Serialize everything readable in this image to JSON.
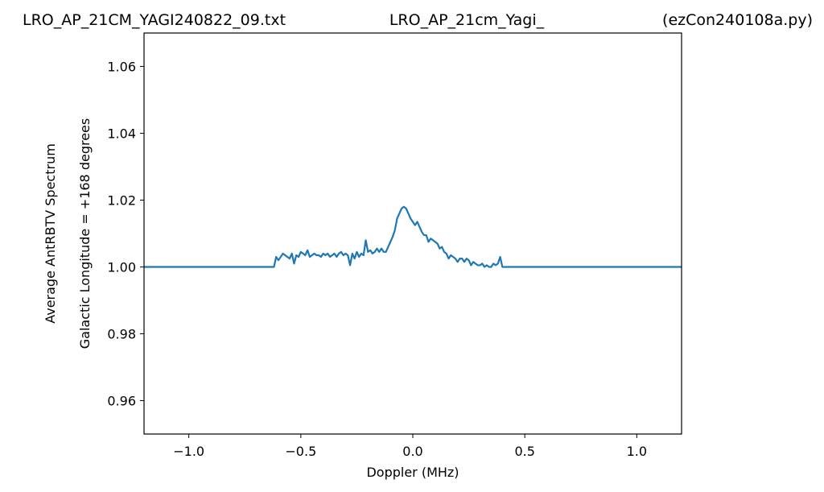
{
  "chart_data": {
    "type": "line",
    "title_left": "LRO_AP_21CM_YAGI240822_09.txt",
    "title_center": "LRO_AP_21cm_Yagi_",
    "title_right": "(ezCon240108a.py)",
    "xlabel": "Doppler (MHz)",
    "ylabel_line1": "Average AntRBTV Spectrum",
    "ylabel_line2": "Galactic Longitude = +168 degrees",
    "xlim": [
      -1.2,
      1.2
    ],
    "ylim": [
      0.95,
      1.07
    ],
    "xticks": [
      -1.0,
      -0.5,
      0.0,
      0.5,
      1.0
    ],
    "xtick_labels": [
      "−1.0",
      "−0.5",
      "0.0",
      "0.5",
      "1.0"
    ],
    "yticks": [
      0.96,
      0.98,
      1.0,
      1.02,
      1.04,
      1.06
    ],
    "ytick_labels": [
      "0.96",
      "0.98",
      "1.00",
      "1.02",
      "1.04",
      "1.06"
    ],
    "grid": false,
    "line_color": "#1f77b4",
    "series": [
      {
        "x": [
          -1.2,
          -0.62,
          -0.61,
          -0.6,
          -0.59,
          -0.58,
          -0.57,
          -0.56,
          -0.55,
          -0.54,
          -0.53,
          -0.52,
          -0.51,
          -0.5,
          -0.49,
          -0.48,
          -0.47,
          -0.46,
          -0.45,
          -0.44,
          -0.43,
          -0.42,
          -0.41,
          -0.4,
          -0.39,
          -0.38,
          -0.37,
          -0.36,
          -0.35,
          -0.34,
          -0.33,
          -0.32,
          -0.31,
          -0.3,
          -0.29,
          -0.28,
          -0.27,
          -0.26,
          -0.25,
          -0.24,
          -0.23,
          -0.22,
          -0.21,
          -0.2,
          -0.19,
          -0.18,
          -0.17,
          -0.16,
          -0.15,
          -0.14,
          -0.13,
          -0.12,
          -0.11,
          -0.1,
          -0.09,
          -0.08,
          -0.07,
          -0.06,
          -0.05,
          -0.04,
          -0.03,
          -0.02,
          -0.01,
          0.0,
          0.01,
          0.02,
          0.03,
          0.04,
          0.05,
          0.06,
          0.07,
          0.08,
          0.09,
          0.1,
          0.11,
          0.12,
          0.13,
          0.14,
          0.15,
          0.16,
          0.17,
          0.18,
          0.19,
          0.2,
          0.21,
          0.22,
          0.23,
          0.24,
          0.25,
          0.26,
          0.27,
          0.28,
          0.29,
          0.3,
          0.31,
          0.32,
          0.33,
          0.34,
          0.35,
          0.36,
          0.37,
          0.38,
          0.385,
          0.39,
          0.4,
          1.2
        ],
        "y": [
          1.0,
          1.0,
          1.003,
          1.002,
          1.003,
          1.004,
          1.0035,
          1.003,
          1.0025,
          1.004,
          1.001,
          1.0035,
          1.003,
          1.0045,
          1.004,
          1.0035,
          1.005,
          1.003,
          1.0035,
          1.004,
          1.0035,
          1.0035,
          1.003,
          1.004,
          1.0035,
          1.004,
          1.003,
          1.0035,
          1.004,
          1.003,
          1.004,
          1.0045,
          1.0035,
          1.004,
          1.0035,
          1.0005,
          1.004,
          1.0025,
          1.0045,
          1.003,
          1.004,
          1.0035,
          1.008,
          1.0045,
          1.005,
          1.004,
          1.0045,
          1.0055,
          1.0045,
          1.0055,
          1.0045,
          1.0045,
          1.006,
          1.0075,
          1.009,
          1.011,
          1.0145,
          1.016,
          1.0175,
          1.018,
          1.0175,
          1.016,
          1.0145,
          1.0135,
          1.0125,
          1.0135,
          1.012,
          1.0105,
          1.0095,
          1.0095,
          1.0075,
          1.0085,
          1.008,
          1.0075,
          1.007,
          1.0055,
          1.006,
          1.0045,
          1.004,
          1.0025,
          1.0035,
          1.003,
          1.0025,
          1.0015,
          1.0025,
          1.0025,
          1.0015,
          1.0025,
          1.002,
          1.0005,
          1.0015,
          1.001,
          1.0005,
          1.0005,
          1.001,
          1.0,
          1.0005,
          1.0,
          1.0,
          1.001,
          1.0005,
          1.001,
          1.002,
          1.003,
          1.0,
          1.0
        ]
      }
    ]
  }
}
